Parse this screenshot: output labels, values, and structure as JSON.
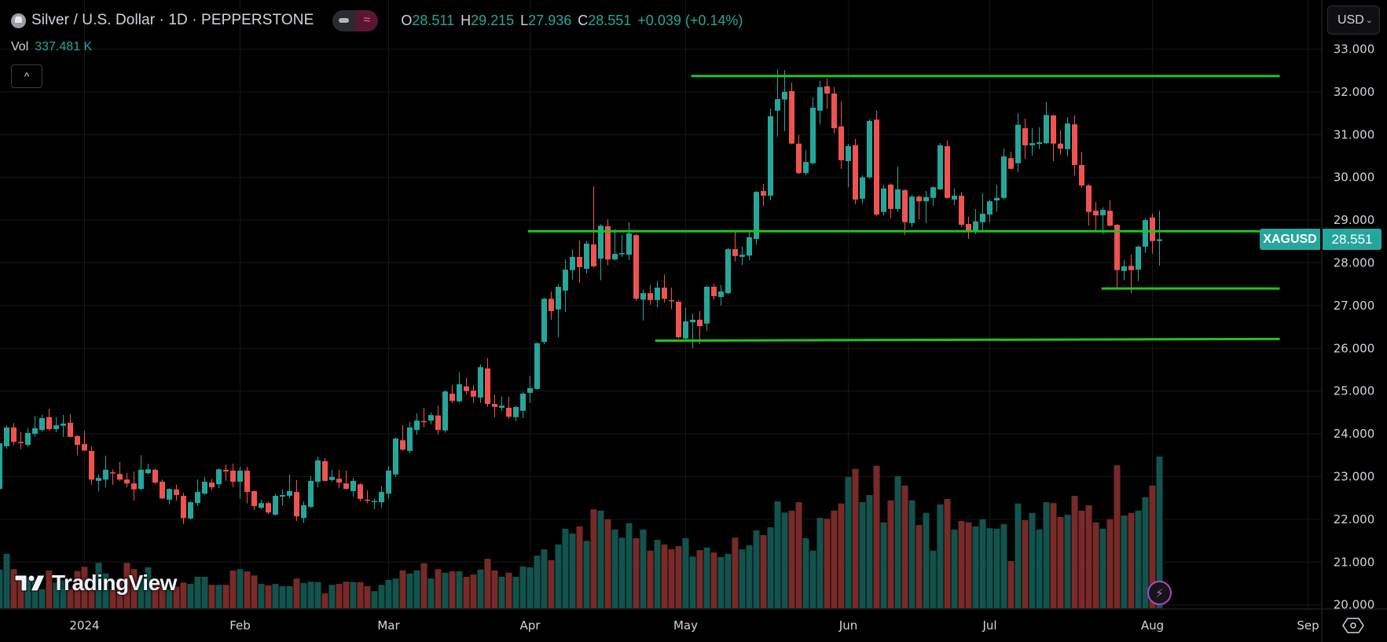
{
  "header": {
    "symbol_icon": "silver-bars-icon",
    "title": "Silver / U.S. Dollar · 1D · PEPPERSTONE",
    "toggle_icon": "≈",
    "ohlc": [
      {
        "key": "O",
        "value": "28.511"
      },
      {
        "key": "H",
        "value": "29.215"
      },
      {
        "key": "L",
        "value": "27.936"
      },
      {
        "key": "C",
        "value": "28.551"
      }
    ],
    "change": "+0.039 (+0.14%)"
  },
  "volume_legend": {
    "label": "Vol",
    "value": "337.481 K"
  },
  "collapse_icon": "^",
  "currency": {
    "label": "USD",
    "chevron": "⌄"
  },
  "symbol_tag": "XAGUSD",
  "last_price": "28.551",
  "logo_text": "TradingView",
  "bolt_icon": "⚡",
  "price_axis": [
    "33.000",
    "32.000",
    "31.000",
    "30.000",
    "29.000",
    "28.000",
    "27.000",
    "26.000",
    "25.000",
    "24.000",
    "23.000",
    "22.000",
    "21.000",
    "20.000"
  ],
  "time_axis": [
    "2024",
    "Feb",
    "Mar",
    "Apr",
    "May",
    "Jun",
    "Jul",
    "Aug",
    "Sep"
  ],
  "colors": {
    "up": "#26a69a",
    "down": "#ef5350",
    "up_volume": "#13534d",
    "down_volume": "#782a28",
    "level_line": "#1ec41e",
    "background": "#000000",
    "grid": "#161616"
  },
  "chart_data": {
    "type": "candlestick",
    "timeframe": "1D",
    "ylim": [
      20,
      33
    ],
    "grid": true,
    "ohlc_fields": [
      "open",
      "high",
      "low",
      "close"
    ],
    "candles": [
      [
        22.71,
        23.9,
        22.6,
        23.78
      ],
      [
        23.71,
        24.2,
        23.65,
        24.15
      ],
      [
        24.15,
        24.25,
        23.73,
        23.81
      ],
      [
        23.81,
        24.04,
        23.64,
        23.79
      ],
      [
        23.74,
        24.14,
        23.7,
        24.02
      ],
      [
        24.0,
        24.42,
        23.93,
        24.13
      ],
      [
        24.09,
        24.45,
        24.05,
        24.37
      ],
      [
        24.39,
        24.59,
        24.08,
        24.11
      ],
      [
        24.11,
        24.39,
        24.04,
        24.2
      ],
      [
        24.19,
        24.44,
        23.93,
        24.24
      ],
      [
        24.26,
        24.46,
        23.92,
        23.93
      ],
      [
        23.95,
        23.97,
        23.5,
        23.74
      ],
      [
        23.76,
        24.07,
        23.6,
        23.61
      ],
      [
        23.6,
        23.71,
        22.81,
        22.93
      ],
      [
        22.9,
        23.05,
        22.66,
        22.97
      ],
      [
        22.93,
        23.49,
        22.75,
        23.16
      ],
      [
        23.1,
        23.17,
        22.81,
        23.08
      ],
      [
        23.06,
        23.34,
        22.9,
        22.93
      ],
      [
        22.93,
        23.08,
        22.75,
        22.84
      ],
      [
        22.84,
        23.12,
        22.44,
        22.7
      ],
      [
        22.71,
        23.5,
        22.68,
        23.16
      ],
      [
        23.08,
        23.3,
        23.05,
        23.17
      ],
      [
        23.16,
        23.19,
        22.82,
        22.86
      ],
      [
        22.88,
        22.93,
        22.47,
        22.49
      ],
      [
        22.46,
        22.73,
        22.35,
        22.71
      ],
      [
        22.7,
        22.81,
        22.44,
        22.57
      ],
      [
        22.55,
        22.62,
        21.89,
        22.03
      ],
      [
        22.02,
        22.42,
        22.0,
        22.4
      ],
      [
        22.38,
        22.93,
        22.31,
        22.64
      ],
      [
        22.6,
        22.99,
        22.57,
        22.88
      ],
      [
        22.86,
        22.95,
        22.68,
        22.75
      ],
      [
        22.82,
        23.19,
        22.73,
        23.17
      ],
      [
        23.16,
        23.28,
        22.9,
        23.12
      ],
      [
        23.14,
        23.3,
        22.75,
        22.88
      ],
      [
        22.88,
        23.23,
        22.48,
        23.14
      ],
      [
        23.14,
        23.23,
        22.37,
        22.64
      ],
      [
        22.66,
        22.68,
        22.22,
        22.31
      ],
      [
        22.27,
        22.46,
        22.24,
        22.38
      ],
      [
        22.38,
        22.42,
        22.12,
        22.16
      ],
      [
        22.11,
        22.6,
        22.08,
        22.55
      ],
      [
        22.53,
        22.7,
        22.33,
        22.57
      ],
      [
        22.55,
        23.05,
        22.49,
        22.66
      ],
      [
        22.64,
        22.92,
        21.96,
        22.07
      ],
      [
        22.03,
        22.42,
        21.91,
        22.33
      ],
      [
        22.29,
        23.01,
        22.26,
        22.9
      ],
      [
        22.88,
        23.47,
        22.75,
        23.38
      ],
      [
        23.36,
        23.43,
        22.88,
        22.9
      ],
      [
        22.92,
        23.16,
        22.88,
        22.99
      ],
      [
        22.95,
        23.16,
        22.73,
        22.86
      ],
      [
        22.84,
        23.14,
        22.7,
        22.71
      ],
      [
        22.66,
        22.97,
        22.53,
        22.9
      ],
      [
        22.82,
        22.85,
        22.42,
        22.48
      ],
      [
        22.46,
        22.68,
        22.38,
        22.45
      ],
      [
        22.42,
        22.48,
        22.24,
        22.43
      ],
      [
        22.4,
        22.77,
        22.27,
        22.64
      ],
      [
        22.6,
        23.25,
        22.48,
        23.14
      ],
      [
        23.05,
        23.91,
        22.99,
        23.89
      ],
      [
        23.85,
        24.2,
        23.6,
        23.63
      ],
      [
        23.6,
        24.28,
        23.55,
        24.15
      ],
      [
        24.09,
        24.48,
        23.98,
        24.31
      ],
      [
        24.3,
        24.61,
        24.15,
        24.28
      ],
      [
        24.31,
        24.5,
        24.22,
        24.44
      ],
      [
        24.43,
        24.66,
        23.98,
        24.09
      ],
      [
        24.08,
        25.02,
        24.03,
        24.99
      ],
      [
        24.94,
        25.14,
        24.72,
        24.77
      ],
      [
        24.76,
        25.44,
        24.74,
        25.16
      ],
      [
        25.11,
        25.31,
        24.92,
        25.0
      ],
      [
        25.01,
        25.14,
        24.72,
        24.87
      ],
      [
        24.85,
        25.62,
        24.72,
        25.56
      ],
      [
        25.53,
        25.77,
        24.63,
        24.7
      ],
      [
        24.7,
        24.92,
        24.39,
        24.63
      ],
      [
        24.61,
        24.87,
        24.54,
        24.66
      ],
      [
        24.61,
        24.87,
        24.35,
        24.4
      ],
      [
        24.39,
        24.65,
        24.3,
        24.63
      ],
      [
        24.54,
        24.98,
        24.37,
        24.94
      ],
      [
        24.96,
        25.36,
        24.72,
        25.07
      ],
      [
        25.05,
        26.14,
        25.03,
        26.12
      ],
      [
        26.15,
        27.18,
        26.1,
        27.16
      ],
      [
        27.16,
        27.33,
        26.67,
        26.87
      ],
      [
        26.91,
        27.5,
        26.26,
        27.44
      ],
      [
        27.35,
        28.08,
        26.85,
        27.84
      ],
      [
        27.83,
        28.32,
        27.61,
        28.14
      ],
      [
        28.14,
        28.52,
        27.53,
        27.9
      ],
      [
        27.86,
        28.51,
        27.75,
        28.45
      ],
      [
        28.43,
        29.79,
        27.9,
        27.92
      ],
      [
        28.1,
        28.9,
        27.59,
        28.87
      ],
      [
        28.86,
        29.02,
        27.94,
        28.08
      ],
      [
        28.08,
        28.8,
        28.06,
        28.21
      ],
      [
        28.2,
        28.65,
        28.14,
        28.23
      ],
      [
        28.19,
        28.95,
        28.06,
        28.69
      ],
      [
        28.65,
        28.67,
        27.11,
        27.16
      ],
      [
        27.14,
        27.37,
        26.65,
        27.29
      ],
      [
        27.29,
        27.48,
        27.02,
        27.13
      ],
      [
        27.13,
        27.57,
        26.96,
        27.42
      ],
      [
        27.42,
        27.73,
        27.07,
        27.16
      ],
      [
        27.13,
        27.42,
        26.92,
        27.12
      ],
      [
        27.09,
        27.12,
        26.23,
        26.26
      ],
      [
        26.23,
        26.96,
        26.2,
        26.63
      ],
      [
        26.61,
        26.81,
        26.0,
        26.67
      ],
      [
        26.67,
        26.87,
        26.1,
        26.52
      ],
      [
        26.58,
        27.47,
        26.41,
        27.44
      ],
      [
        27.44,
        27.51,
        27.14,
        27.22
      ],
      [
        27.2,
        27.48,
        27.0,
        27.33
      ],
      [
        27.29,
        28.35,
        27.27,
        28.32
      ],
      [
        28.32,
        28.76,
        28.03,
        28.16
      ],
      [
        28.14,
        28.38,
        27.95,
        28.19
      ],
      [
        28.17,
        28.73,
        28.06,
        28.6
      ],
      [
        28.56,
        29.68,
        28.43,
        29.66
      ],
      [
        29.68,
        29.85,
        29.33,
        29.57
      ],
      [
        29.57,
        31.61,
        29.46,
        31.43
      ],
      [
        31.56,
        32.53,
        30.95,
        31.83
      ],
      [
        31.82,
        32.51,
        31.08,
        32.0
      ],
      [
        32.02,
        32.22,
        30.77,
        30.79
      ],
      [
        30.79,
        30.99,
        30.07,
        30.1
      ],
      [
        30.1,
        30.64,
        30.05,
        30.36
      ],
      [
        30.33,
        31.87,
        30.3,
        31.63
      ],
      [
        31.56,
        32.26,
        31.24,
        32.11
      ],
      [
        32.13,
        32.31,
        31.61,
        31.96
      ],
      [
        31.96,
        32.11,
        31.02,
        31.15
      ],
      [
        31.19,
        31.78,
        30.2,
        30.4
      ],
      [
        30.38,
        30.78,
        29.77,
        30.73
      ],
      [
        30.75,
        30.9,
        29.37,
        29.48
      ],
      [
        29.5,
        30.05,
        29.39,
        30.0
      ],
      [
        30.0,
        31.36,
        29.97,
        31.32
      ],
      [
        31.35,
        31.56,
        29.1,
        29.13
      ],
      [
        29.19,
        29.83,
        29.11,
        29.74
      ],
      [
        29.83,
        29.86,
        29.04,
        29.26
      ],
      [
        29.26,
        30.25,
        29.19,
        29.72
      ],
      [
        29.7,
        29.72,
        28.65,
        28.95
      ],
      [
        28.93,
        29.59,
        28.84,
        29.55
      ],
      [
        29.55,
        29.58,
        29.02,
        29.44
      ],
      [
        29.44,
        29.68,
        28.93,
        29.54
      ],
      [
        29.52,
        29.79,
        29.33,
        29.77
      ],
      [
        29.72,
        30.8,
        29.7,
        30.75
      ],
      [
        30.73,
        30.86,
        29.5,
        29.52
      ],
      [
        29.48,
        29.74,
        29.35,
        29.57
      ],
      [
        29.57,
        29.66,
        28.84,
        28.89
      ],
      [
        28.91,
        29.08,
        28.56,
        28.74
      ],
      [
        28.74,
        29.26,
        28.67,
        28.97
      ],
      [
        28.95,
        29.63,
        28.76,
        29.15
      ],
      [
        29.13,
        29.48,
        28.95,
        29.44
      ],
      [
        29.46,
        29.83,
        29.2,
        29.52
      ],
      [
        29.52,
        30.67,
        29.48,
        30.49
      ],
      [
        30.45,
        30.6,
        30.18,
        30.2
      ],
      [
        30.33,
        31.5,
        30.12,
        31.23
      ],
      [
        31.15,
        31.37,
        30.43,
        30.75
      ],
      [
        30.75,
        31.15,
        30.51,
        30.8
      ],
      [
        30.78,
        31.17,
        30.66,
        30.82
      ],
      [
        30.8,
        31.76,
        30.78,
        31.46
      ],
      [
        31.45,
        31.47,
        30.38,
        30.79
      ],
      [
        30.79,
        31.1,
        30.53,
        30.67
      ],
      [
        30.66,
        31.41,
        30.49,
        31.26
      ],
      [
        31.24,
        31.45,
        30.05,
        30.29
      ],
      [
        30.29,
        30.6,
        29.76,
        29.81
      ],
      [
        29.81,
        29.84,
        28.87,
        29.19
      ],
      [
        29.22,
        29.42,
        28.74,
        29.11
      ],
      [
        29.11,
        29.3,
        28.67,
        29.24
      ],
      [
        29.22,
        29.46,
        28.85,
        28.87
      ],
      [
        28.89,
        28.91,
        27.37,
        27.83
      ],
      [
        27.81,
        28.06,
        27.59,
        27.92
      ],
      [
        27.93,
        28.19,
        27.29,
        27.83
      ],
      [
        27.84,
        28.41,
        27.57,
        28.38
      ],
      [
        28.38,
        29.04,
        28.23,
        29.0
      ],
      [
        29.06,
        29.15,
        28.21,
        28.51
      ],
      [
        28.511,
        29.215,
        27.936,
        28.551
      ]
    ],
    "volume_unit": "K",
    "volumes": [
      86,
      121,
      87,
      71,
      68,
      65,
      42,
      84,
      57,
      62,
      42,
      83,
      92,
      45,
      101,
      77,
      42,
      65,
      101,
      87,
      68,
      91,
      65,
      54,
      42,
      48,
      57,
      54,
      70,
      70,
      52,
      52,
      52,
      84,
      87,
      82,
      73,
      54,
      51,
      54,
      49,
      49,
      66,
      56,
      59,
      58,
      33,
      52,
      54,
      59,
      58,
      58,
      49,
      38,
      52,
      63,
      66,
      84,
      77,
      84,
      100,
      66,
      87,
      79,
      82,
      82,
      70,
      75,
      86,
      110,
      84,
      70,
      79,
      70,
      93,
      91,
      117,
      131,
      107,
      142,
      177,
      166,
      182,
      150,
      220,
      217,
      198,
      175,
      157,
      189,
      156,
      175,
      128,
      152,
      142,
      131,
      138,
      156,
      115,
      129,
      135,
      124,
      114,
      121,
      157,
      131,
      140,
      173,
      163,
      180,
      238,
      213,
      217,
      236,
      156,
      128,
      201,
      199,
      217,
      233,
      292,
      310,
      236,
      252,
      317,
      191,
      240,
      294,
      273,
      240,
      185,
      212,
      128,
      231,
      243,
      175,
      194,
      191,
      182,
      198,
      178,
      177,
      187,
      105,
      233,
      196,
      212,
      175,
      236,
      234,
      203,
      208,
      250,
      217,
      229,
      191,
      177,
      198,
      318,
      206,
      212,
      217,
      247,
      273,
      337.481
    ],
    "horizontal_levels": [
      {
        "price_start": 32.37,
        "price_end": 32.37,
        "start_bar": 97.8,
        "end_bar": 181
      },
      {
        "price_start": 28.74,
        "price_end": 28.74,
        "start_bar": 74.7,
        "end_bar": 181
      },
      {
        "price_start": 27.4,
        "price_end": 27.4,
        "start_bar": 155.8,
        "end_bar": 181
      },
      {
        "price_start": 26.18,
        "price_end": 26.22,
        "start_bar": 92.7,
        "end_bar": 181
      }
    ]
  }
}
